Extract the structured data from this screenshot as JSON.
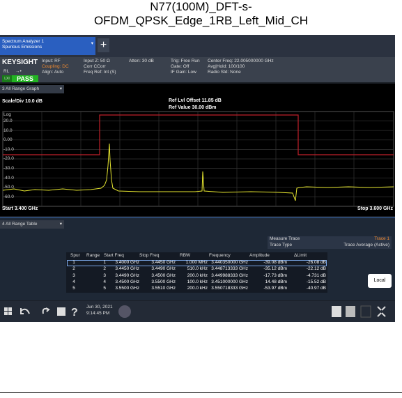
{
  "title": {
    "line1": "N77(100M)_DFT-s-",
    "line2": "OFDM_QPSK_Edge_1RB_Left_Mid_CH"
  },
  "tab": {
    "line1": "Spectrum Analyzer 1",
    "line2": "Spurious Emissions",
    "add": "+"
  },
  "info": {
    "brand": "KEYSIGHT",
    "rl": "RL",
    "lxi": "LXI",
    "status": "PASS",
    "col1": [
      "Input: RF",
      "Coupling: DC",
      "Align: Auto"
    ],
    "col2": [
      "Input Z: 50 Ω",
      "Corr CCorr",
      "Freq Ref: Int (S)"
    ],
    "col3": [
      "Atten: 30 dB"
    ],
    "col4": [
      "Trig: Free Run",
      "Gate: Off",
      "IF Gain: Low"
    ],
    "col5": [
      "Center Freq: 22.005000000 GHz",
      "Avg|Hold: 100/100",
      "Radio Std: None"
    ]
  },
  "graph": {
    "window": "3 All Range Graph",
    "scale": "Scale/Div 10.0 dB",
    "offset": "Ref Lvl Offset 11.85 dB",
    "ref": "Ref Value 30.00 dBm",
    "log": "Log",
    "yticks": [
      "20.0",
      "10.0",
      "0.00",
      "-10.0",
      "-20.0",
      "-30.0",
      "-40.0",
      "-50.0",
      "-60.0"
    ],
    "start": "Start 3.400 GHz",
    "stop": "Stop 3.600 GHz"
  },
  "table": {
    "window": "4 All Range Table",
    "measure_trace_label": "Measure Trace",
    "measure_trace": "Trace 1",
    "trace_type_label": "Trace Type",
    "trace_type": "Trace Average (Active)",
    "header": [
      "Spur",
      "Range",
      "Start Freq",
      "Stop Freq",
      "RBW",
      "Frequency",
      "Amplitude",
      "ΔLimit"
    ],
    "rows": [
      [
        "1",
        "1",
        "3.4000 GHz",
        "3.4450 GHz",
        "1.000 MHz",
        "3.440350000 GHz",
        "-39.08 dBm",
        "-26.08 dB"
      ],
      [
        "2",
        "2",
        "3.4450 GHz",
        "3.4490 GHz",
        "510.0 kHz",
        "3.448713333 GHz",
        "-35.12 dBm",
        "-22.12 dB"
      ],
      [
        "3",
        "3",
        "3.4490 GHz",
        "3.4500 GHz",
        "200.0 kHz",
        "3.449988333 GHz",
        "-17.73 dBm",
        "-4.731 dB"
      ],
      [
        "4",
        "4",
        "3.4500 GHz",
        "3.5500 GHz",
        "100.0 kHz",
        "3.451000000 GHz",
        "14.48 dBm",
        "-15.52 dB"
      ],
      [
        "5",
        "5",
        "3.5500 GHz",
        "3.5510 GHz",
        "200.0 kHz",
        "3.550718333 GHz",
        "-53.97 dBm",
        "-40.97 dB"
      ]
    ]
  },
  "local": "Local",
  "taskbar": {
    "date": "Jun 30, 2021",
    "time": "9:14:45 PM"
  }
}
